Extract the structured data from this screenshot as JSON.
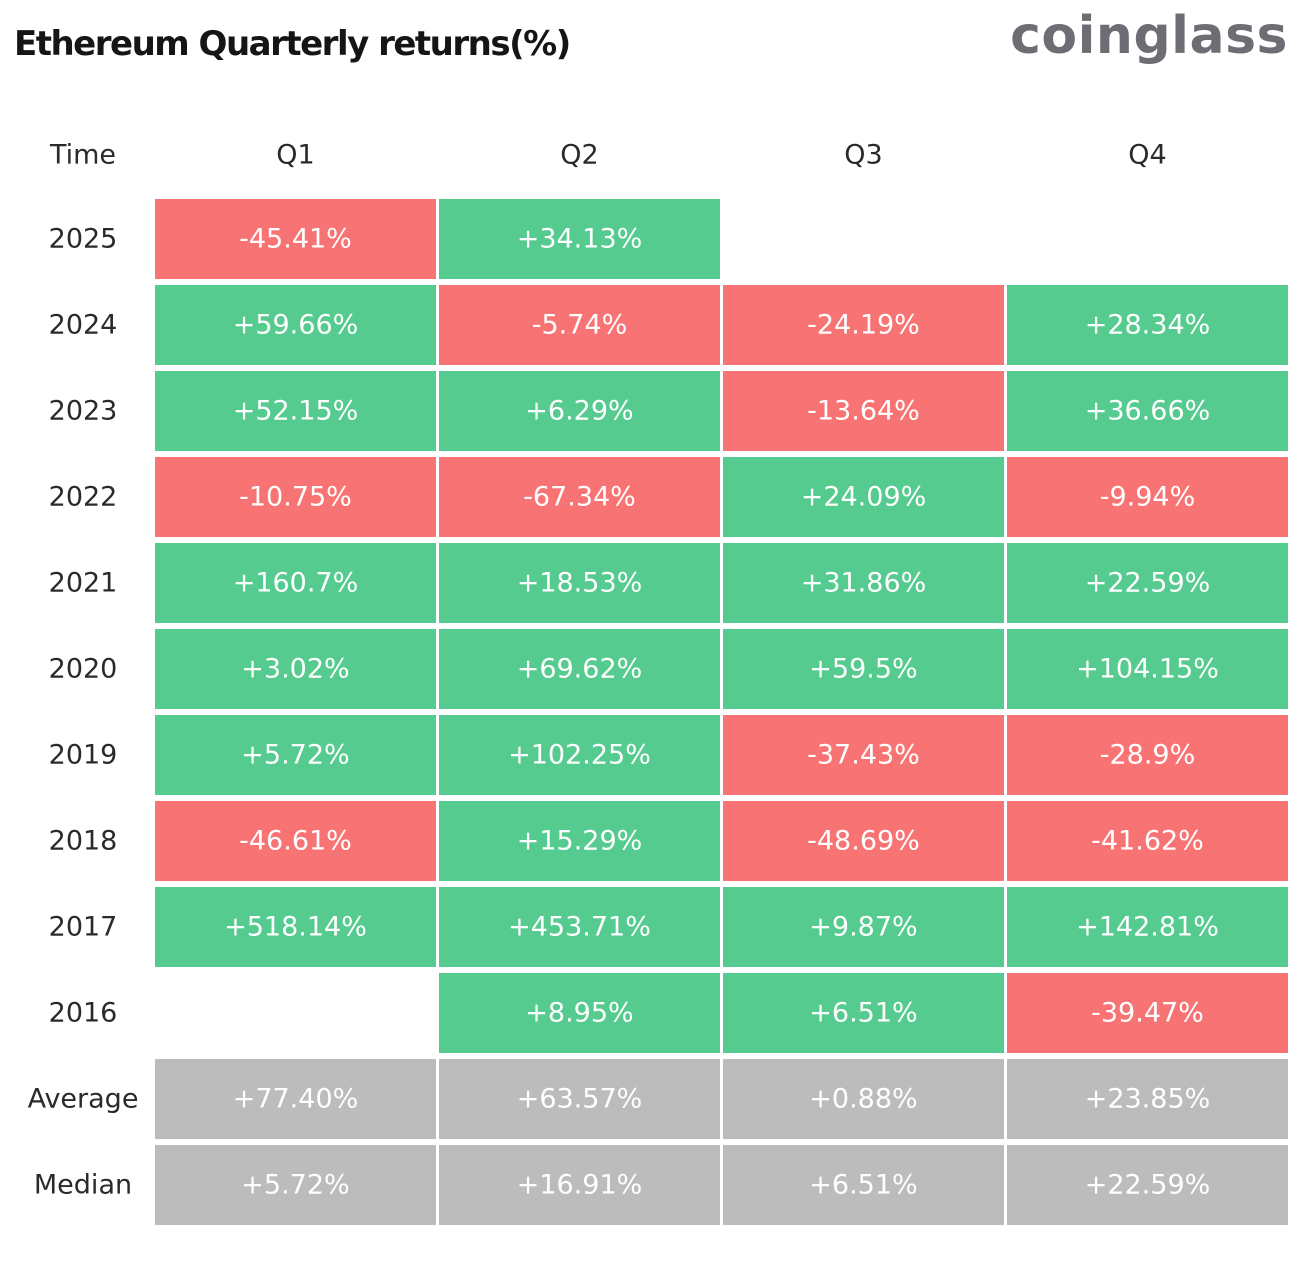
{
  "title": "Ethereum Quarterly returns(%)",
  "brand": "coinglass",
  "colors": {
    "positive": "#56cb8f",
    "negative": "#f87474",
    "summary": "#bcbcbc",
    "cell_text": "#ffffff",
    "label_text": "#2a2a2a",
    "title_text": "#151515",
    "brand_text": "#6c6e74"
  },
  "chart_data": {
    "type": "table",
    "header_label": "Time",
    "columns": [
      "Q1",
      "Q2",
      "Q3",
      "Q4"
    ],
    "rows": [
      {
        "label": "2025",
        "kind": "year",
        "values": [
          "-45.41%",
          "+34.13%",
          null,
          null
        ]
      },
      {
        "label": "2024",
        "kind": "year",
        "values": [
          "+59.66%",
          "-5.74%",
          "-24.19%",
          "+28.34%"
        ]
      },
      {
        "label": "2023",
        "kind": "year",
        "values": [
          "+52.15%",
          "+6.29%",
          "-13.64%",
          "+36.66%"
        ]
      },
      {
        "label": "2022",
        "kind": "year",
        "values": [
          "-10.75%",
          "-67.34%",
          "+24.09%",
          "-9.94%"
        ]
      },
      {
        "label": "2021",
        "kind": "year",
        "values": [
          "+160.7%",
          "+18.53%",
          "+31.86%",
          "+22.59%"
        ]
      },
      {
        "label": "2020",
        "kind": "year",
        "values": [
          "+3.02%",
          "+69.62%",
          "+59.5%",
          "+104.15%"
        ]
      },
      {
        "label": "2019",
        "kind": "year",
        "values": [
          "+5.72%",
          "+102.25%",
          "-37.43%",
          "-28.9%"
        ]
      },
      {
        "label": "2018",
        "kind": "year",
        "values": [
          "-46.61%",
          "+15.29%",
          "-48.69%",
          "-41.62%"
        ]
      },
      {
        "label": "2017",
        "kind": "year",
        "values": [
          "+518.14%",
          "+453.71%",
          "+9.87%",
          "+142.81%"
        ]
      },
      {
        "label": "2016",
        "kind": "year",
        "values": [
          null,
          "+8.95%",
          "+6.51%",
          "-39.47%"
        ]
      },
      {
        "label": "Average",
        "kind": "summary",
        "values": [
          "+77.40%",
          "+63.57%",
          "+0.88%",
          "+23.85%"
        ]
      },
      {
        "label": "Median",
        "kind": "summary",
        "values": [
          "+5.72%",
          "+16.91%",
          "+6.51%",
          "+22.59%"
        ]
      }
    ]
  }
}
